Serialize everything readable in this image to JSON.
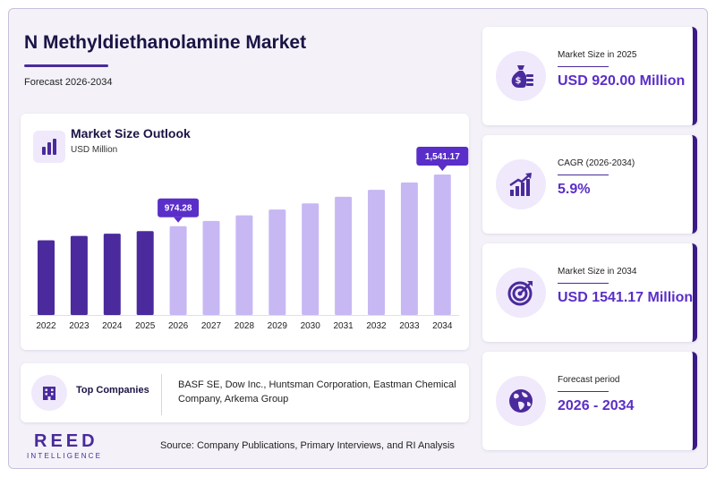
{
  "header": {
    "title": "N Methyldiethanolamine Market",
    "subtitle": "Forecast 2026-2034"
  },
  "chart_card": {
    "title": "Market Size Outlook",
    "unit": "USD Million"
  },
  "chart_data": {
    "type": "bar",
    "title": "Market Size Outlook",
    "ylabel": "USD Million",
    "categories": [
      "2022",
      "2023",
      "2024",
      "2025",
      "2026",
      "2027",
      "2028",
      "2029",
      "2030",
      "2031",
      "2032",
      "2033",
      "2034"
    ],
    "values": [
      820,
      867,
      892,
      920,
      974.28,
      1032,
      1093,
      1157,
      1225,
      1297,
      1373,
      1454,
      1541.17
    ],
    "series_kind": [
      "historical",
      "historical",
      "historical",
      "historical",
      "forecast",
      "forecast",
      "forecast",
      "forecast",
      "forecast",
      "forecast",
      "forecast",
      "forecast",
      "forecast"
    ],
    "callouts": [
      {
        "category": "2026",
        "label": "974.28"
      },
      {
        "category": "2034",
        "label": "1,541.17"
      }
    ],
    "ylim": [
      0,
      1541.17
    ],
    "grid": false,
    "colors": {
      "historical": "#4a2a9c",
      "forecast": "#c7b8f3",
      "callout": "#5a2ec8"
    }
  },
  "companies": {
    "label": "Top Companies",
    "text": "BASF SE, Dow Inc., Huntsman Corporation, Eastman Chemical Company, Arkema Group",
    "icon": "building-icon"
  },
  "logo": {
    "main": "REED",
    "sub": "INTELLIGENCE"
  },
  "source": "Source: Company Publications, Primary Interviews, and RI Analysis",
  "stats": [
    {
      "label": "Market Size in 2025",
      "value": "USD 920.00 Million",
      "icon": "money-bag-icon"
    },
    {
      "label": "CAGR (2026-2034)",
      "value": "5.9%",
      "icon": "growth-chart-icon"
    },
    {
      "label": "Market Size in 2034",
      "value": "USD 1541.17 Million",
      "icon": "target-icon"
    },
    {
      "label": "Forecast period",
      "value": "2026 - 2034",
      "icon": "globe-icon"
    }
  ],
  "colors": {
    "accent": "#4a2a9c",
    "value_text": "#5a2ec8",
    "light_bar": "#c7b8f3",
    "icon_bg": "#efe9fb"
  }
}
